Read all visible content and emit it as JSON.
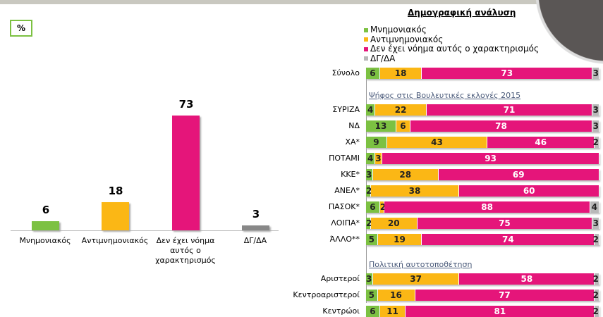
{
  "unit_label": "%",
  "colors": {
    "pro": "#7cc142",
    "anti": "#fbb715",
    "none": "#e5157a",
    "dk": "#b8b8b8"
  },
  "chart_data": [
    {
      "type": "bar",
      "title": "",
      "categories": [
        "Μνημονιακός",
        "Αντιμνημονιακός",
        "Δεν έχει νόημα αυτός ο χαρακτηρισμός",
        "ΔΓ/ΔΑ"
      ],
      "values": [
        6,
        18,
        73,
        3
      ],
      "ylim": [
        0,
        80
      ]
    },
    {
      "type": "bar",
      "orientation": "horizontal-stacked",
      "title": "Δημογραφική ανάλυση",
      "legend": [
        "Μνημονιακός",
        "Αντιμνημονιακός",
        "Δεν έχει νόημα αυτός ο χαρακτηρισμός",
        "ΔΓ/ΔΑ"
      ],
      "rows": [
        {
          "label": "Σύνολο",
          "values": [
            6,
            18,
            73,
            3
          ]
        },
        {
          "section": "Ψήφος στις Βουλευτικές εκλογές 2015"
        },
        {
          "label": "ΣΥΡΙΖΑ",
          "values": [
            4,
            22,
            71,
            3
          ]
        },
        {
          "label": "ΝΔ",
          "values": [
            13,
            6,
            78,
            3
          ]
        },
        {
          "label": "ΧΑ*",
          "values": [
            9,
            43,
            46,
            2
          ]
        },
        {
          "label": "ΠΟΤΑΜΙ",
          "values": [
            4,
            3,
            93,
            null
          ]
        },
        {
          "label": "ΚΚΕ*",
          "values": [
            3,
            28,
            69,
            null
          ]
        },
        {
          "label": "ΑΝΕΛ*",
          "values": [
            2,
            38,
            60,
            null
          ]
        },
        {
          "label": "ΠΑΣΟΚ*",
          "values": [
            6,
            2,
            88,
            4
          ]
        },
        {
          "label": "ΛΟΙΠΑ*",
          "values": [
            2,
            20,
            75,
            3
          ]
        },
        {
          "label": "ΆΛΛΟ**",
          "values": [
            5,
            19,
            74,
            2
          ]
        },
        {
          "section": "Πολιτική αυτοτοποθέτηση"
        },
        {
          "label": "Αριστεροί",
          "values": [
            3,
            37,
            58,
            2
          ]
        },
        {
          "label": "Κεντροαριστεροί",
          "values": [
            5,
            16,
            77,
            2
          ]
        },
        {
          "label": "Κεντρώοι",
          "values": [
            6,
            11,
            81,
            2
          ]
        }
      ],
      "xlim": [
        0,
        100
      ]
    }
  ]
}
